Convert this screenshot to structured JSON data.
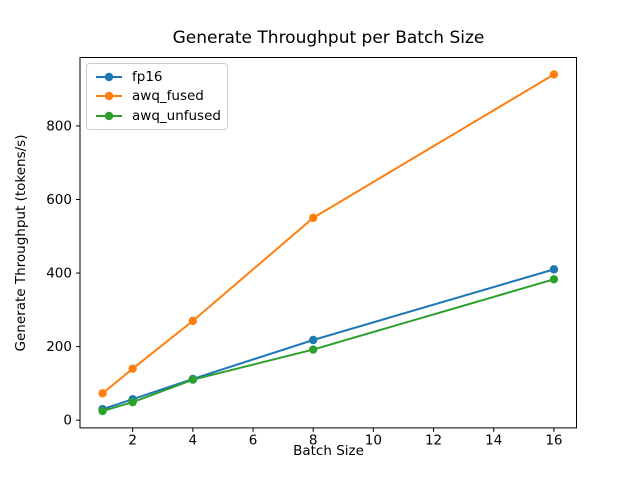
{
  "chart_data": {
    "type": "line",
    "title": "Generate Throughput per Batch Size",
    "xlabel": "Batch Size",
    "ylabel": "Generate Throughput (tokens/s)",
    "x": [
      1,
      2,
      4,
      8,
      16
    ],
    "series": [
      {
        "name": "fp16",
        "color": "#1f77b4",
        "values": [
          30,
          57,
          112,
          218,
          410
        ]
      },
      {
        "name": "awq_fused",
        "color": "#ff7f0e",
        "values": [
          73,
          140,
          270,
          550,
          940
        ]
      },
      {
        "name": "awq_unfused",
        "color": "#2ca02c",
        "values": [
          25,
          49,
          110,
          192,
          383
        ]
      }
    ],
    "xlim": [
      0.25,
      16.75
    ],
    "ylim": [
      -21,
      986
    ],
    "xticks": [
      2,
      4,
      6,
      8,
      10,
      12,
      14,
      16
    ],
    "yticks": [
      0,
      200,
      400,
      600,
      800
    ],
    "grid": false,
    "marker": "o",
    "legend": {
      "position": "upper left",
      "entries": [
        "fp16",
        "awq_fused",
        "awq_unfused"
      ]
    },
    "axes_color": "#000000",
    "background": "#ffffff"
  }
}
